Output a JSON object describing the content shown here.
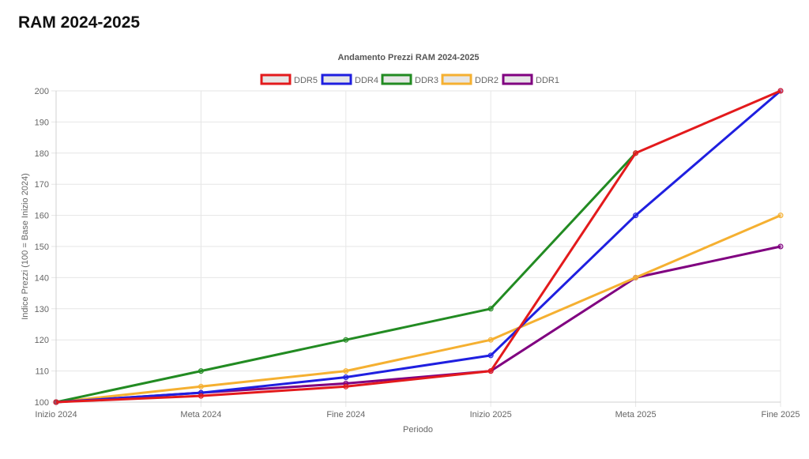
{
  "page": {
    "title": "RAM 2024-2025"
  },
  "chart_data": {
    "type": "line",
    "title": "Andamento Prezzi RAM 2024-2025",
    "xlabel": "Periodo",
    "ylabel": "Indice Prezzi (100 = Base Inizio 2024)",
    "categories": [
      "Inizio 2024",
      "Meta 2024",
      "Fine 2024",
      "Inizio 2025",
      "Meta 2025",
      "Fine 2025"
    ],
    "ylim": [
      100,
      200
    ],
    "yticks": [
      100,
      110,
      120,
      130,
      140,
      150,
      160,
      170,
      180,
      190,
      200
    ],
    "grid": true,
    "legend_position": "top",
    "series": [
      {
        "name": "DDR5",
        "color": "#e31a1c",
        "values": [
          100,
          102,
          105,
          110,
          180,
          200
        ]
      },
      {
        "name": "DDR4",
        "color": "#1f1fe0",
        "values": [
          100,
          103,
          108,
          115,
          160,
          200
        ]
      },
      {
        "name": "DDR3",
        "color": "#228b22",
        "values": [
          100,
          110,
          120,
          130,
          180,
          null
        ]
      },
      {
        "name": "DDR2",
        "color": "#f5b031",
        "values": [
          100,
          105,
          110,
          120,
          140,
          160
        ]
      },
      {
        "name": "DDR1",
        "color": "#800080",
        "values": [
          100,
          103,
          106,
          110,
          140,
          150
        ]
      }
    ]
  }
}
